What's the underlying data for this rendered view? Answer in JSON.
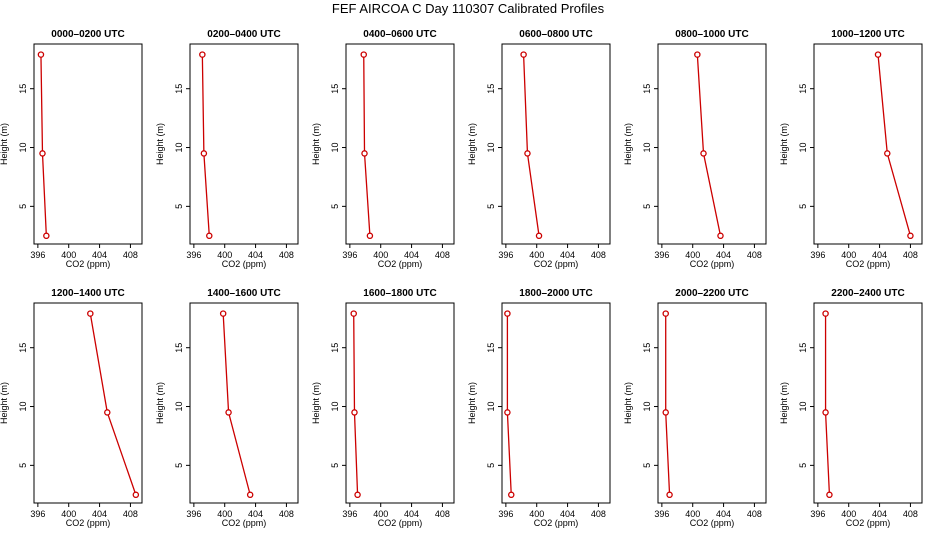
{
  "title": "FEF AIRCOA C  Day 110307  Calibrated Profiles",
  "chart_data": {
    "type": "line",
    "title": "FEF AIRCOA C  Day 110307  Calibrated Profiles",
    "xlabel": "CO2 (ppm)",
    "ylabel": "Height (m)",
    "xlim": [
      395.5,
      409.5
    ],
    "ylim": [
      1.8,
      18.8
    ],
    "xticks": [
      396,
      400,
      404,
      408
    ],
    "yticks": [
      5,
      10,
      15
    ],
    "heights": [
      17.9,
      9.5,
      2.5
    ],
    "colors": {
      "line": "#cc0000",
      "marker": "#cc0000"
    },
    "panels": [
      {
        "title": "0000–0200 UTC",
        "x": [
          396.4,
          396.6,
          397.1
        ]
      },
      {
        "title": "0200–0400 UTC",
        "x": [
          397.1,
          397.3,
          398.0
        ]
      },
      {
        "title": "0400–0600 UTC",
        "x": [
          397.8,
          397.9,
          398.6
        ]
      },
      {
        "title": "0600–0800 UTC",
        "x": [
          398.3,
          398.8,
          400.3
        ]
      },
      {
        "title": "0800–1000 UTC",
        "x": [
          400.6,
          401.4,
          403.6
        ]
      },
      {
        "title": "1000–1200 UTC",
        "x": [
          403.8,
          405.0,
          408.0
        ]
      },
      {
        "title": "1200–1400 UTC",
        "x": [
          402.8,
          405.0,
          408.7
        ]
      },
      {
        "title": "1400–1600 UTC",
        "x": [
          399.8,
          400.5,
          403.3
        ]
      },
      {
        "title": "1600–1800 UTC",
        "x": [
          396.5,
          396.6,
          397.0
        ]
      },
      {
        "title": "1800–2000 UTC",
        "x": [
          396.2,
          396.2,
          396.7
        ]
      },
      {
        "title": "2000–2200 UTC",
        "x": [
          396.5,
          396.5,
          397.0
        ]
      },
      {
        "title": "2200–2400 UTC",
        "x": [
          397.0,
          397.0,
          397.5
        ]
      }
    ]
  }
}
